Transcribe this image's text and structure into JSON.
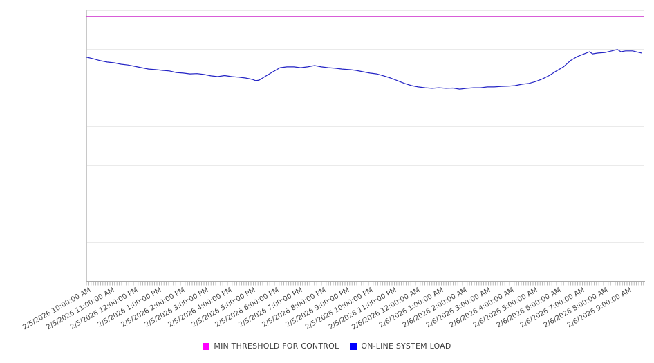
{
  "chart_data": {
    "type": "line",
    "title": "",
    "xlabel": "",
    "ylabel": "",
    "grid": "horizontal-only",
    "legend_position": "bottom-center",
    "x_axis": {
      "tick_labels": [
        "2/5/2026 10:00:00 AM",
        "2/5/2026 11:00:00 AM",
        "2/5/2026 12:00:00 PM",
        "2/5/2026 1:00:00 PM",
        "2/5/2026 2:00:00 PM",
        "2/5/2026 3:00:00 PM",
        "2/5/2026 4:00:00 PM",
        "2/5/2026 5:00:00 PM",
        "2/5/2026 6:00:00 PM",
        "2/5/2026 7:00:00 PM",
        "2/5/2026 8:00:00 PM",
        "2/5/2026 9:00:00 PM",
        "2/5/2026 10:00:00 PM",
        "2/5/2026 11:00:00 PM",
        "2/6/2026 12:00:00 AM",
        "2/6/2026 1:00:00 AM",
        "2/6/2026 2:00:00 AM",
        "2/6/2026 3:00:00 AM",
        "2/6/2026 4:00:00 AM",
        "2/6/2026 5:00:00 AM",
        "2/6/2026 6:00:00 AM",
        "2/6/2026 7:00:00 AM",
        "2/6/2026 8:00:00 AM",
        "2/6/2026 9:00:00 AM"
      ],
      "minor_ticks_per_hour": 10
    },
    "y_axis": {
      "labels_visible": false,
      "range_normalized_percent": [
        0,
        100
      ],
      "gridline_count": 7
    },
    "series": [
      {
        "name": "MIN THRESHOLD FOR CONTROL",
        "kind": "threshold",
        "value": 97.7,
        "color": "#FF00FF",
        "line_color": "#CC29CC"
      },
      {
        "name": "ON-LINE SYSTEM LOAD",
        "kind": "line",
        "color": "#0000FF",
        "line_color": "#2222C4",
        "points": [
          [
            -0.09,
            82.7
          ],
          [
            0.21,
            82.1
          ],
          [
            0.5,
            81.4
          ],
          [
            0.79,
            80.9
          ],
          [
            1.09,
            80.6
          ],
          [
            1.38,
            80.1
          ],
          [
            1.68,
            79.8
          ],
          [
            1.97,
            79.3
          ],
          [
            2.26,
            78.8
          ],
          [
            2.56,
            78.3
          ],
          [
            2.85,
            78.1
          ],
          [
            3.15,
            77.8
          ],
          [
            3.44,
            77.6
          ],
          [
            3.74,
            77.0
          ],
          [
            4.03,
            76.8
          ],
          [
            4.32,
            76.5
          ],
          [
            4.62,
            76.6
          ],
          [
            4.91,
            76.3
          ],
          [
            5.21,
            75.8
          ],
          [
            5.5,
            75.5
          ],
          [
            5.79,
            75.9
          ],
          [
            6.09,
            75.5
          ],
          [
            6.38,
            75.3
          ],
          [
            6.68,
            75.0
          ],
          [
            6.97,
            74.5
          ],
          [
            7.12,
            74.0
          ],
          [
            7.26,
            74.2
          ],
          [
            7.56,
            75.8
          ],
          [
            7.85,
            77.3
          ],
          [
            8.15,
            78.8
          ],
          [
            8.44,
            79.1
          ],
          [
            8.74,
            79.1
          ],
          [
            9.03,
            78.8
          ],
          [
            9.32,
            79.1
          ],
          [
            9.62,
            79.6
          ],
          [
            9.91,
            79.1
          ],
          [
            10.21,
            78.8
          ],
          [
            10.5,
            78.6
          ],
          [
            10.79,
            78.3
          ],
          [
            11.09,
            78.1
          ],
          [
            11.38,
            77.8
          ],
          [
            11.68,
            77.3
          ],
          [
            11.97,
            76.8
          ],
          [
            12.26,
            76.5
          ],
          [
            12.56,
            75.8
          ],
          [
            12.85,
            75.0
          ],
          [
            13.15,
            74.0
          ],
          [
            13.44,
            73.0
          ],
          [
            13.74,
            72.2
          ],
          [
            14.03,
            71.7
          ],
          [
            14.32,
            71.4
          ],
          [
            14.62,
            71.2
          ],
          [
            14.91,
            71.4
          ],
          [
            15.21,
            71.2
          ],
          [
            15.5,
            71.3
          ],
          [
            15.79,
            70.9
          ],
          [
            16.09,
            71.2
          ],
          [
            16.38,
            71.4
          ],
          [
            16.68,
            71.4
          ],
          [
            16.97,
            71.7
          ],
          [
            17.26,
            71.7
          ],
          [
            17.56,
            71.9
          ],
          [
            17.85,
            72.0
          ],
          [
            18.15,
            72.2
          ],
          [
            18.44,
            72.7
          ],
          [
            18.74,
            73.0
          ],
          [
            19.03,
            73.7
          ],
          [
            19.32,
            74.7
          ],
          [
            19.62,
            76.0
          ],
          [
            19.91,
            77.6
          ],
          [
            20.21,
            79.1
          ],
          [
            20.5,
            81.4
          ],
          [
            20.79,
            82.9
          ],
          [
            21.09,
            83.9
          ],
          [
            21.32,
            84.7
          ],
          [
            21.44,
            83.9
          ],
          [
            21.68,
            84.2
          ],
          [
            21.97,
            84.4
          ],
          [
            22.26,
            85.0
          ],
          [
            22.5,
            85.5
          ],
          [
            22.65,
            84.7
          ],
          [
            22.85,
            85.0
          ],
          [
            23.15,
            85.0
          ],
          [
            23.44,
            84.4
          ],
          [
            23.53,
            84.2
          ]
        ]
      }
    ]
  },
  "colors": {
    "background": "#FFFFFF",
    "gridline": "#EAEAEA",
    "left_axis": "#C8C8C8",
    "bottom_axis": "#A9A9A9",
    "tick_label_text": "#424242",
    "legend_text": "#3D3D3D"
  }
}
